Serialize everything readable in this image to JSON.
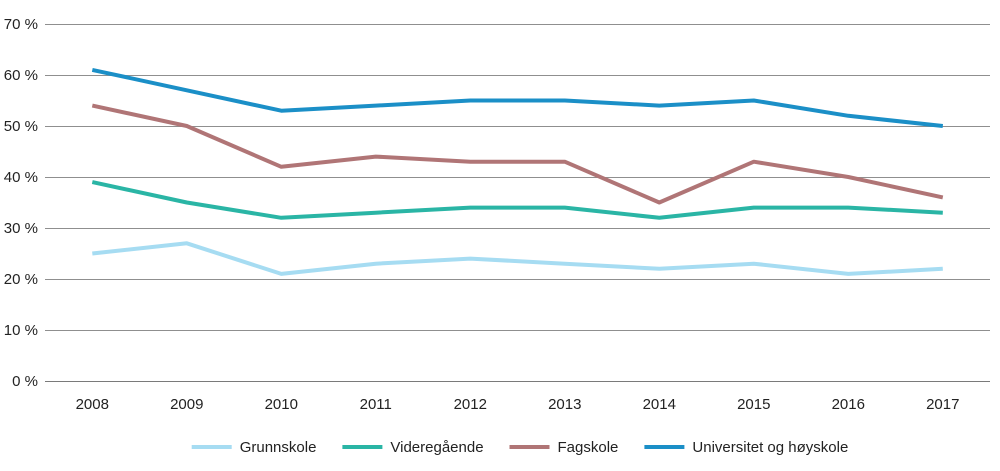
{
  "chart_data": {
    "type": "line",
    "title": "",
    "xlabel": "",
    "ylabel": "",
    "categories": [
      "2008",
      "2009",
      "2010",
      "2011",
      "2012",
      "2013",
      "2014",
      "2015",
      "2016",
      "2017"
    ],
    "ylim": [
      0,
      70
    ],
    "yticks": [
      0,
      10,
      20,
      30,
      40,
      50,
      60,
      70
    ],
    "ytick_labels": [
      "0 %",
      "10 %",
      "20 %",
      "30 %",
      "40 %",
      "50 %",
      "60 %",
      "70 %"
    ],
    "grid": true,
    "legend_position": "bottom",
    "series": [
      {
        "name": "Grunnskole",
        "color": "#a6dcf2",
        "values": [
          25,
          27,
          21,
          23,
          24,
          23,
          22,
          23,
          21,
          22
        ]
      },
      {
        "name": "Videregående",
        "color": "#2ab5a5",
        "values": [
          39,
          35,
          32,
          33,
          34,
          34,
          32,
          34,
          34,
          33
        ]
      },
      {
        "name": "Fagskole",
        "color": "#b07576",
        "values": [
          54,
          50,
          42,
          44,
          43,
          43,
          35,
          43,
          40,
          36
        ]
      },
      {
        "name": "Universitet og høyskole",
        "color": "#1b8fc7",
        "values": [
          61,
          57,
          53,
          54,
          55,
          55,
          54,
          55,
          52,
          50
        ]
      }
    ]
  }
}
